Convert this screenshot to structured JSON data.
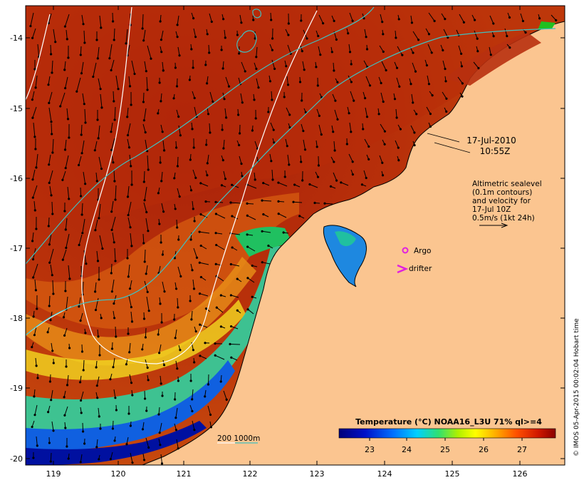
{
  "map": {
    "lon_ticks": [
      "119",
      "120",
      "121",
      "122",
      "123",
      "124",
      "125",
      "126"
    ],
    "lat_ticks": [
      "-14",
      "-15",
      "-16",
      "-17",
      "-18",
      "-19",
      "-20"
    ],
    "date_label": "17-Jul-2010",
    "time_label": "10:55Z",
    "legend_lines": [
      "Altimetric sealevel",
      "(0.1m contours)",
      "and velocity for",
      "17-Jul 10Z",
      "0.5m/s (1kt 24h)"
    ],
    "argo_label": "Argo",
    "drifter_label": "drifter",
    "depth_label": "200  1000m",
    "colorbar": {
      "title": "Temperature (°C) NOAA16_L3U 71% ql>=4",
      "ticks": [
        "23",
        "24",
        "25",
        "26",
        "27"
      ]
    },
    "credit": "© IMOS 05-Apr-2015 00:02:04 Hobart time",
    "colors": {
      "land": "#fbc590",
      "warm": "#b02c0c",
      "cool": "#0c1a9a",
      "contour_200m": "#40c0c0",
      "contour_sealevel": "#ffffff",
      "argo": "#e020e0",
      "drifter": "#e020e0"
    }
  }
}
